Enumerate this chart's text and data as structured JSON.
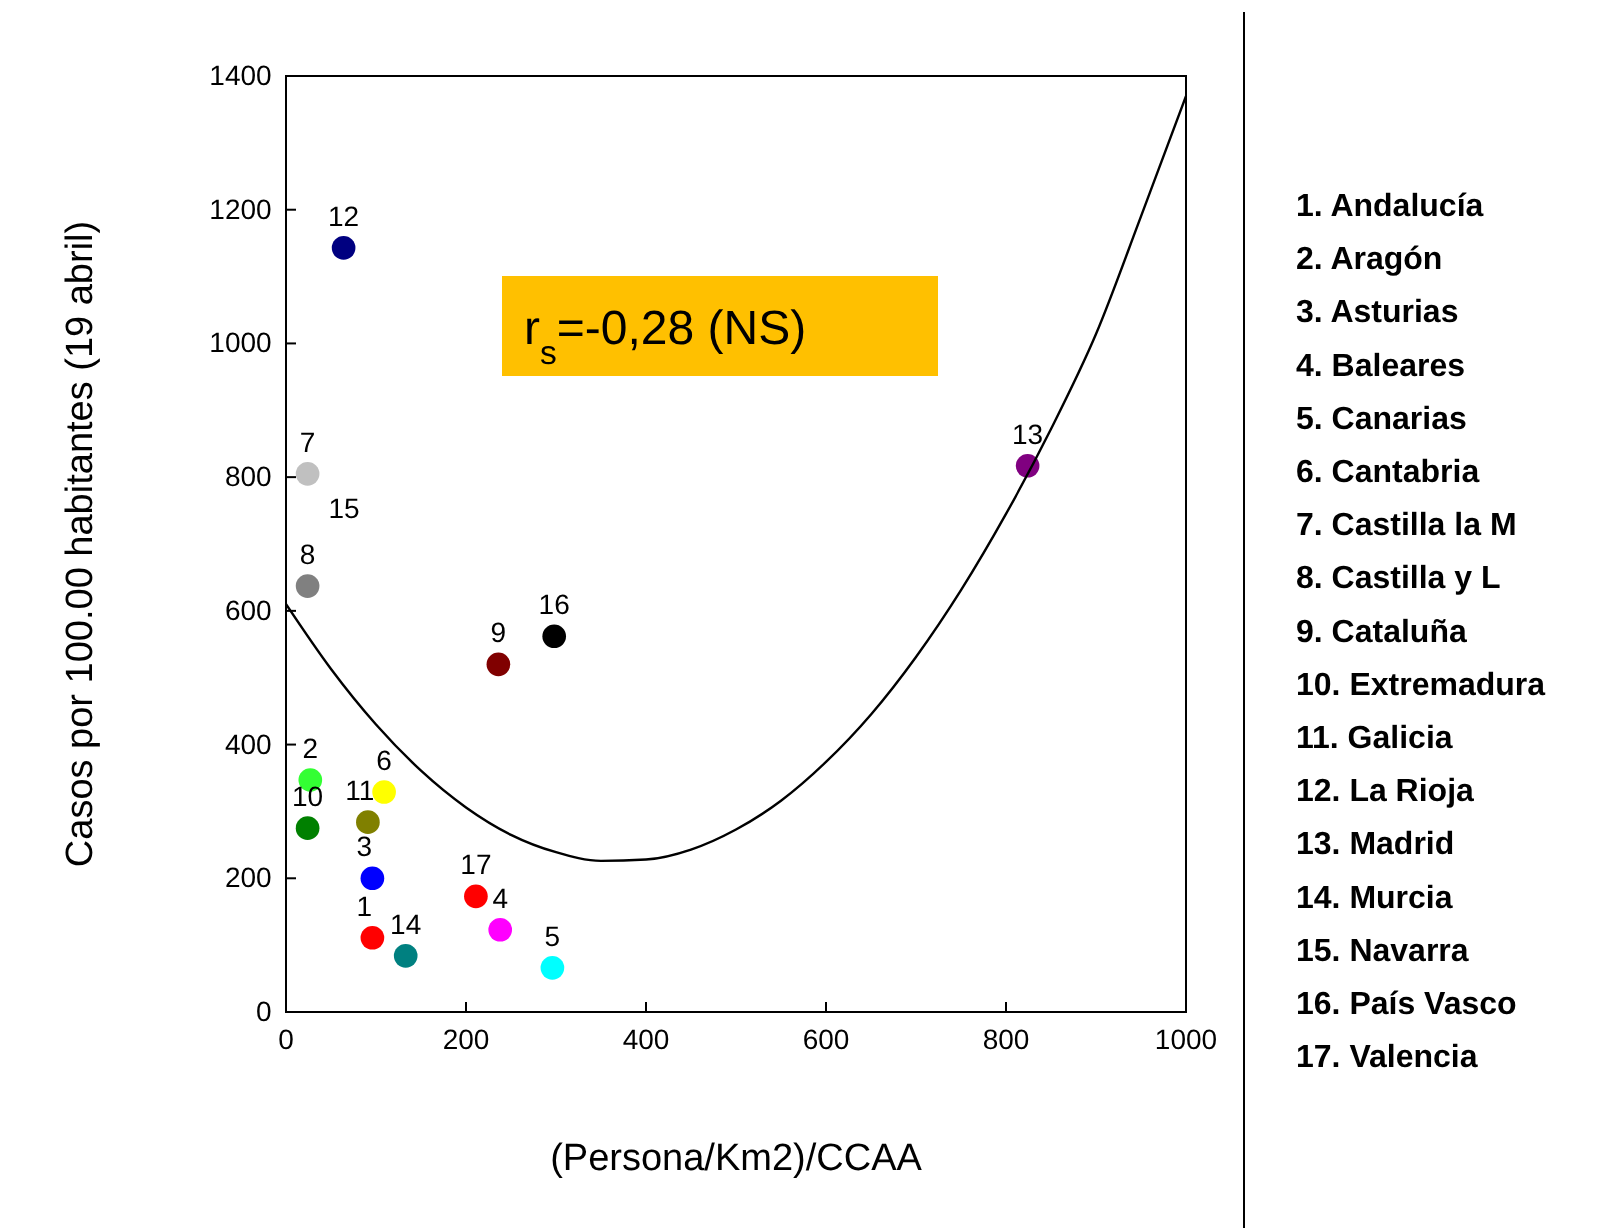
{
  "chart_data": {
    "type": "scatter",
    "xlabel": "(Persona/Km2)/CCAA",
    "ylabel": "Casos por 100.00 habitantes (19 abril)",
    "xlim": [
      0,
      1000
    ],
    "ylim": [
      0,
      1400
    ],
    "xticks": [
      0,
      200,
      400,
      600,
      800,
      1000
    ],
    "yticks": [
      0,
      200,
      400,
      600,
      800,
      1000,
      1200,
      1400
    ],
    "grid": false,
    "marker": "circle",
    "series": [
      {
        "x": [
          96,
          27,
          96,
          238,
          296,
          109,
          24,
          24,
          236,
          24,
          91,
          64,
          824,
          133,
          298,
          211
        ],
        "values": [
          111,
          347,
          200,
          123,
          66,
          329,
          805,
          637,
          520,
          275,
          284,
          1143,
          817,
          84,
          562,
          173
        ],
        "colors": [
          "#ff0000",
          "#33ff33",
          "#0000ff",
          "#ff00ff",
          "#00ffff",
          "#ffff00",
          "#c0c0c0",
          "#808080",
          "#800000",
          "#008000",
          "#808000",
          "#000080",
          "#800080",
          "#008080",
          "#000000",
          "#ff0000"
        ]
      },
      {
        "type": "line",
        "color": "#000000",
        "marker": "none",
        "line_style": "solid",
        "x": [
          0,
          50,
          100,
          150,
          200,
          250,
          300,
          350,
          400,
          450,
          500,
          550,
          600,
          650,
          700,
          750,
          800,
          850,
          900,
          950,
          1000
        ],
        "values": [
          610,
          513,
          430,
          361,
          306,
          265,
          239,
          226,
          228,
          243,
          273,
          316,
          374,
          445,
          531,
          631,
          745,
          872,
          1014,
          1190,
          1370
        ]
      }
    ],
    "annotations": [
      "r$_{s}$=-0,28 (NS)",
      "1. Andalucía",
      "2. Aragón",
      "3. Asturias",
      "4. Baleares",
      "5. Canarias",
      "6. Cantabria",
      "7. Castilla la M",
      "8. Castilla y L",
      "9. Cataluña",
      "10. Extremadura",
      "11. Galicia",
      "12. La Rioja",
      "13. Madrid",
      "14. Murcia",
      "15. Navarra",
      "16. País Vasco",
      "17. Valencia",
      "15",
      {
        "text": "1",
        "x": 96,
        "y": 111
      },
      {
        "text": "2",
        "x": 27,
        "y": 347
      },
      {
        "text": "3",
        "x": 96,
        "y": 200
      },
      {
        "text": "4",
        "x": 238,
        "y": 123
      },
      {
        "text": "5",
        "x": 296,
        "y": 66
      },
      {
        "text": "6",
        "x": 109,
        "y": 329
      },
      {
        "text": "7",
        "x": 24,
        "y": 805
      },
      {
        "text": "8",
        "x": 24,
        "y": 637
      },
      {
        "text": "9",
        "x": 236,
        "y": 520
      },
      {
        "text": "10",
        "x": 24,
        "y": 275
      },
      {
        "text": "11",
        "x": 91,
        "y": 284
      },
      {
        "text": "12",
        "x": 64,
        "y": 1143
      },
      {
        "text": "13",
        "x": 824,
        "y": 817
      },
      {
        "text": "14",
        "x": 133,
        "y": 84
      },
      {
        "text": "16",
        "x": 298,
        "y": 562
      },
      {
        "text": "17",
        "x": 211,
        "y": 173
      }
    ]
  }
}
